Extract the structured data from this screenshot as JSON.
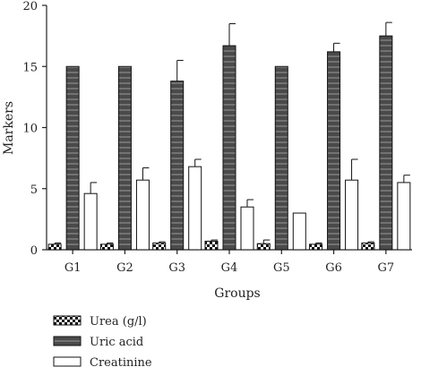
{
  "chart_data": {
    "type": "bar",
    "xlabel": "Groups",
    "ylabel": "Markers",
    "ylim": [
      0,
      20
    ],
    "yticks": [
      0,
      5,
      10,
      15,
      20
    ],
    "grid": false,
    "legend_position": "bottom-left",
    "categories": [
      "G1",
      "G2",
      "G3",
      "G4",
      "G5",
      "G6",
      "G7"
    ],
    "series": [
      {
        "name": "Urea (g/l)",
        "pattern": "checker",
        "color": "#1a1a1a",
        "values": [
          0.45,
          0.45,
          0.55,
          0.7,
          0.5,
          0.45,
          0.55
        ],
        "errors": [
          0.1,
          0.1,
          0.1,
          0.1,
          0.3,
          0.1,
          0.1
        ]
      },
      {
        "name": "Uric acid",
        "pattern": "dark-striped",
        "color": "#4a4a4a",
        "values": [
          15.0,
          15.0,
          13.8,
          16.7,
          15.0,
          16.2,
          17.5
        ],
        "errors": [
          0,
          0,
          1.7,
          1.8,
          0,
          0.7,
          1.1
        ]
      },
      {
        "name": "Creatinine",
        "pattern": "white",
        "color": "#ffffff",
        "values": [
          4.6,
          5.7,
          6.8,
          3.5,
          3.0,
          5.7,
          5.5
        ],
        "errors": [
          0.9,
          1.0,
          0.6,
          0.6,
          0,
          1.7,
          0.6
        ]
      }
    ]
  }
}
